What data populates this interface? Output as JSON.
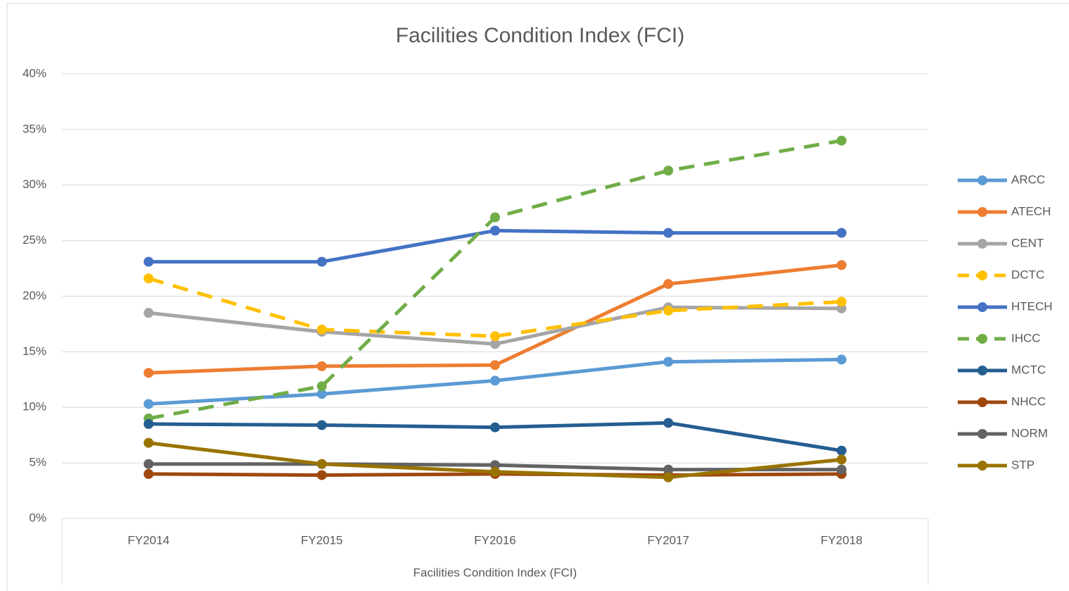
{
  "chart_data": {
    "type": "line",
    "title": "Facilities Condition Index (FCI)",
    "x_label": "Facilities Condition Index (FCI)",
    "categories": [
      "FY2014",
      "FY2015",
      "FY2016",
      "FY2017",
      "FY2018"
    ],
    "series": [
      {
        "name": "ARCC",
        "color": "#5b9bd5",
        "values": [
          10.3,
          11.2,
          12.4,
          14.1,
          14.3
        ]
      },
      {
        "name": "ATECH",
        "color": "#ed7d31",
        "values": [
          13.1,
          13.7,
          13.8,
          21.1,
          22.8
        ]
      },
      {
        "name": "CENT",
        "color": "#a5a5a5",
        "values": [
          18.5,
          16.8,
          15.7,
          19.0,
          18.9
        ]
      },
      {
        "name": "DCTC",
        "color": "#ffc000",
        "dashed": true,
        "values": [
          21.6,
          17.0,
          16.4,
          18.7,
          19.5
        ]
      },
      {
        "name": "HTECH",
        "color": "#4472c4",
        "values": [
          23.1,
          23.1,
          25.9,
          25.7,
          25.7
        ]
      },
      {
        "name": "IHCC",
        "color": "#70ad47",
        "dashed": true,
        "values": [
          9.0,
          11.9,
          27.1,
          31.3,
          34.0
        ]
      },
      {
        "name": "MCTC",
        "color": "#255e91",
        "values": [
          8.5,
          8.4,
          8.2,
          8.6,
          6.1
        ]
      },
      {
        "name": "NHCC",
        "color": "#9e480e",
        "values": [
          4.0,
          3.9,
          4.0,
          3.9,
          4.0
        ]
      },
      {
        "name": "NORM",
        "color": "#636363",
        "values": [
          4.9,
          4.9,
          4.8,
          4.4,
          4.4
        ]
      },
      {
        "name": "STP",
        "color": "#997300",
        "values": [
          6.8,
          4.9,
          4.2,
          3.7,
          5.3
        ]
      }
    ],
    "ylim": [
      0,
      40
    ],
    "yticks": [
      {
        "value": 0,
        "label": "0%"
      },
      {
        "value": 5,
        "label": "5%"
      },
      {
        "value": 10,
        "label": "10%"
      },
      {
        "value": 15,
        "label": "15%"
      },
      {
        "value": 20,
        "label": "20%"
      },
      {
        "value": 25,
        "label": "25%"
      },
      {
        "value": 30,
        "label": "30%"
      },
      {
        "value": 35,
        "label": "35%"
      },
      {
        "value": 40,
        "label": "40%"
      }
    ],
    "grid": true,
    "legend": "right"
  }
}
